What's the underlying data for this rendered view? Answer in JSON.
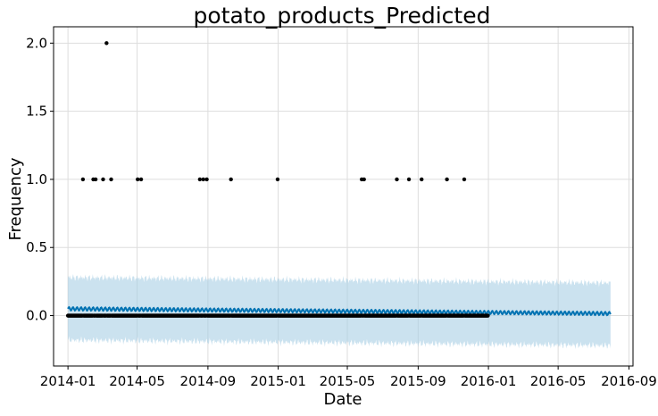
{
  "chart_data": {
    "type": "scatter",
    "title": "potato_products_Predicted",
    "xlabel": "Date",
    "ylabel": "Frequency",
    "grid": true,
    "xlim": [
      "2013-12-07",
      "2016-09-08"
    ],
    "ylim": [
      -0.37,
      2.12
    ],
    "x_ticks": [
      "2014-01",
      "2014-05",
      "2014-09",
      "2015-01",
      "2015-05",
      "2015-09",
      "2016-01",
      "2016-05",
      "2016-09"
    ],
    "y_ticks": [
      0.0,
      0.5,
      1.0,
      1.5,
      2.0
    ],
    "y_tick_labels": [
      "0.0",
      "0.5",
      "1.0",
      "1.5",
      "2.0"
    ],
    "colors": {
      "observed": "#000000",
      "forecast": "#0072B2",
      "interval": "#A9CFE4"
    },
    "observed_range": [
      "2014-01-01",
      "2015-12-31"
    ],
    "observed_baseline": 0.0,
    "observed_nonzero": [
      {
        "x": "2014-01-27",
        "y": 1
      },
      {
        "x": "2014-02-14",
        "y": 1
      },
      {
        "x": "2014-02-18",
        "y": 1
      },
      {
        "x": "2014-03-03",
        "y": 1
      },
      {
        "x": "2014-03-09",
        "y": 2
      },
      {
        "x": "2014-03-17",
        "y": 1
      },
      {
        "x": "2014-05-02",
        "y": 1
      },
      {
        "x": "2014-05-08",
        "y": 1
      },
      {
        "x": "2014-08-18",
        "y": 1
      },
      {
        "x": "2014-08-24",
        "y": 1
      },
      {
        "x": "2014-08-30",
        "y": 1
      },
      {
        "x": "2014-10-11",
        "y": 1
      },
      {
        "x": "2014-12-31",
        "y": 1
      },
      {
        "x": "2015-05-26",
        "y": 1
      },
      {
        "x": "2015-05-30",
        "y": 1
      },
      {
        "x": "2015-07-26",
        "y": 1
      },
      {
        "x": "2015-08-16",
        "y": 1
      },
      {
        "x": "2015-09-07",
        "y": 1
      },
      {
        "x": "2015-10-21",
        "y": 1
      },
      {
        "x": "2015-11-20",
        "y": 1
      }
    ],
    "forecast": {
      "x_start": "2014-01-01",
      "x_end": "2016-07-31",
      "y_start": 0.05,
      "y_end": 0.015,
      "weekly_amplitude": 0.012,
      "lower_start": -0.18,
      "lower_end": -0.22,
      "upper_start": 0.28,
      "upper_end": 0.24
    }
  }
}
